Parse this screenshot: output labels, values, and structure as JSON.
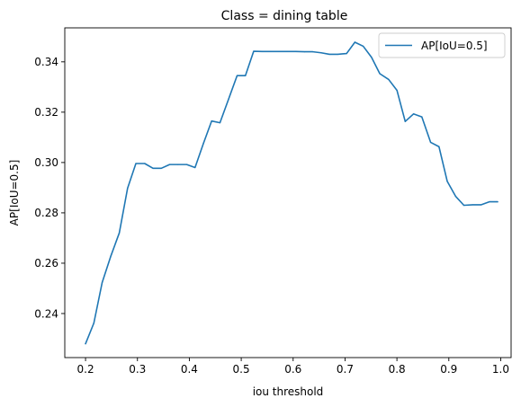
{
  "chart_data": {
    "type": "line",
    "title": "Class = dining table",
    "xlabel": "iou threshold",
    "ylabel": "AP[IoU=0.5]",
    "xlim": [
      0.16,
      1.02
    ],
    "ylim": [
      0.2225,
      0.3535
    ],
    "xticks": [
      0.2,
      0.3,
      0.4,
      0.5,
      0.6,
      0.7,
      0.8,
      0.9,
      1.0
    ],
    "xtick_labels": [
      "0.2",
      "0.3",
      "0.4",
      "0.5",
      "0.6",
      "0.7",
      "0.8",
      "0.9",
      "1.0"
    ],
    "yticks": [
      0.24,
      0.26,
      0.28,
      0.3,
      0.32,
      0.34
    ],
    "ytick_labels": [
      "0.24",
      "0.26",
      "0.28",
      "0.30",
      "0.32",
      "0.34"
    ],
    "grid": false,
    "legend_position": "top-right",
    "series": [
      {
        "name": "AP[IoU=0.5]",
        "color": "#1f77b4",
        "x": [
          0.2,
          0.216,
          0.232,
          0.249,
          0.265,
          0.281,
          0.297,
          0.314,
          0.33,
          0.346,
          0.362,
          0.378,
          0.395,
          0.411,
          0.427,
          0.443,
          0.459,
          0.476,
          0.492,
          0.508,
          0.524,
          0.54,
          0.557,
          0.573,
          0.589,
          0.605,
          0.622,
          0.638,
          0.654,
          0.67,
          0.686,
          0.703,
          0.719,
          0.735,
          0.751,
          0.767,
          0.784,
          0.8,
          0.816,
          0.832,
          0.848,
          0.865,
          0.881,
          0.897,
          0.913,
          0.929,
          0.946,
          0.962,
          0.978,
          0.994
        ],
        "values": [
          0.228,
          0.2362,
          0.2523,
          0.263,
          0.272,
          0.2898,
          0.2996,
          0.2996,
          0.2977,
          0.2977,
          0.2992,
          0.2992,
          0.2992,
          0.298,
          0.3075,
          0.3165,
          0.3158,
          0.3254,
          0.3345,
          0.3345,
          0.3442,
          0.3441,
          0.3441,
          0.3441,
          0.3441,
          0.3441,
          0.344,
          0.344,
          0.3436,
          0.343,
          0.343,
          0.3433,
          0.3478,
          0.3462,
          0.3418,
          0.3353,
          0.333,
          0.3287,
          0.3163,
          0.3193,
          0.3181,
          0.308,
          0.3063,
          0.2925,
          0.2866,
          0.283,
          0.2832,
          0.2832,
          0.2844,
          0.2844
        ]
      }
    ]
  }
}
